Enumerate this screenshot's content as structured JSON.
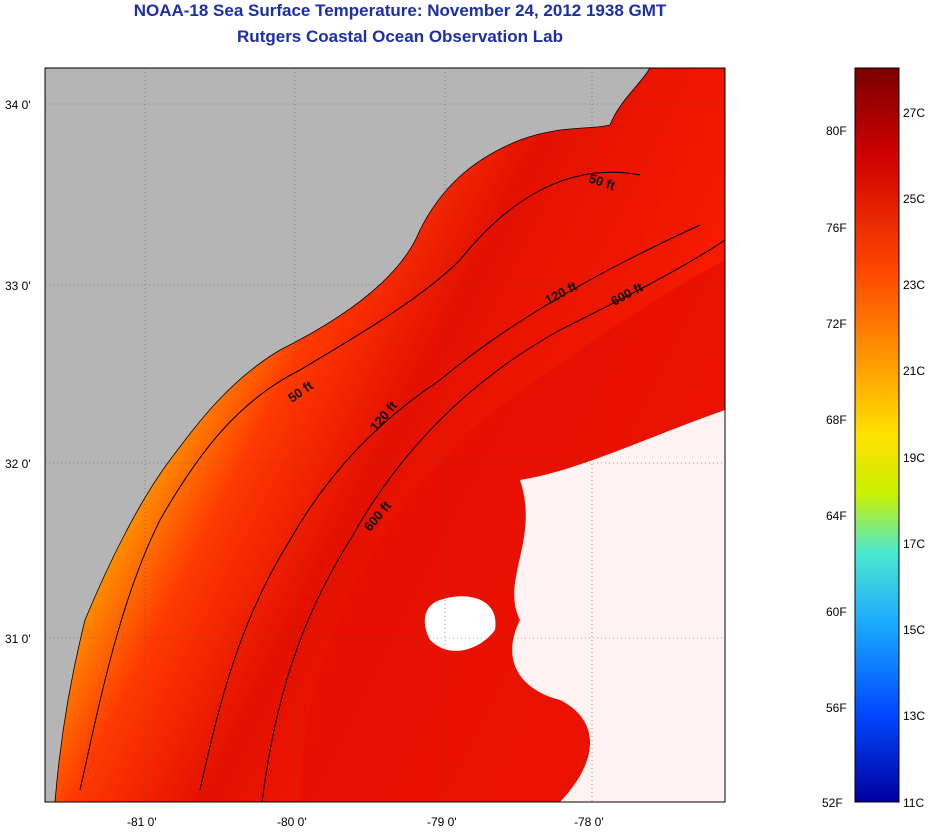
{
  "header": {
    "title": "NOAA-18 Sea Surface Temperature:  November 24, 2012 1938 GMT",
    "subtitle": "Rutgers Coastal Ocean Observation Lab"
  },
  "map": {
    "latitude_labels": [
      "34 0'",
      "33 0'",
      "32 0'",
      "31 0'"
    ],
    "longitude_labels": [
      "-81 0'",
      "-80 0'",
      "-79 0'",
      "-78 0'"
    ],
    "contour_labels": [
      "50 ft",
      "120 ft",
      "600 ft",
      "50 ft",
      "120 ft",
      "600 ft"
    ],
    "colors": {
      "land": "#b5b5b5",
      "cloud": "#ffffff",
      "coastline": "#000000"
    }
  },
  "colorbar": {
    "fahrenheit_labels": [
      "80F",
      "76F",
      "72F",
      "68F",
      "64F",
      "60F",
      "56F",
      "52F"
    ],
    "celsius_labels": [
      "27C",
      "25C",
      "23C",
      "21C",
      "19C",
      "17C",
      "15C",
      "13C",
      "11C"
    ],
    "colors": [
      "#7a0000",
      "#d10000",
      "#ff4a00",
      "#ff9a00",
      "#ffe100",
      "#c8f000",
      "#4ce8d0",
      "#1aa8ff",
      "#0048ff",
      "#0000a0"
    ]
  }
}
